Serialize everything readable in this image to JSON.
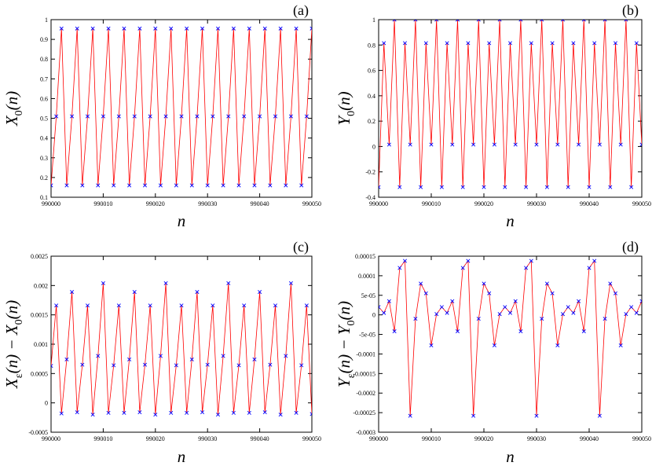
{
  "chart_data": [
    {
      "type": "line",
      "panel_label": "(a)",
      "xlabel": "n",
      "ylabel": {
        "base": "X",
        "sub": "0",
        "arg": "(n)"
      },
      "xlim": [
        990000,
        990050
      ],
      "ylim": [
        0.1,
        1.0
      ],
      "x_ticks": [
        990000,
        990010,
        990020,
        990030,
        990040,
        990050
      ],
      "y_ticks": [
        0.1,
        0.2,
        0.3,
        0.4,
        0.5,
        0.6,
        0.7,
        0.8,
        0.9,
        1.0
      ],
      "y_tick_labels": [
        "0.1",
        "0.2",
        "0.3",
        "0.4",
        "0.5",
        "0.6",
        "0.7",
        "0.8",
        "0.9",
        "1"
      ],
      "line_color": "#ff0000",
      "marker_color": "#0000ff",
      "marker": "x",
      "x_start": 990000,
      "values": [
        0.16,
        0.51,
        0.955,
        0.16,
        0.51,
        0.955,
        0.16,
        0.51,
        0.955,
        0.16,
        0.51,
        0.955,
        0.16,
        0.51,
        0.955,
        0.16,
        0.51,
        0.955,
        0.16,
        0.51,
        0.955,
        0.16,
        0.51,
        0.955,
        0.16,
        0.51,
        0.955,
        0.16,
        0.51,
        0.955,
        0.16,
        0.51,
        0.955,
        0.16,
        0.51,
        0.955,
        0.16,
        0.51,
        0.955,
        0.16,
        0.51,
        0.955,
        0.16,
        0.51,
        0.955,
        0.16,
        0.51,
        0.955,
        0.16,
        0.51,
        0.955
      ]
    },
    {
      "type": "line",
      "panel_label": "(b)",
      "xlabel": "n",
      "ylabel": {
        "base": "Y",
        "sub": "0",
        "arg": "(n)"
      },
      "xlim": [
        990000,
        990050
      ],
      "ylim": [
        -0.4,
        1.0
      ],
      "x_ticks": [
        990000,
        990010,
        990020,
        990030,
        990040,
        990050
      ],
      "y_ticks": [
        -0.4,
        -0.2,
        0,
        0.2,
        0.4,
        0.6,
        0.8,
        1.0
      ],
      "y_tick_labels": [
        "-0.4",
        "-0.2",
        "0",
        "0.2",
        "0.4",
        "0.6",
        "0.8",
        "1"
      ],
      "line_color": "#ff0000",
      "marker_color": "#0000ff",
      "marker": "x",
      "x_start": 990000,
      "values": [
        -0.32,
        0.815,
        0.015,
        1.0,
        -0.32,
        0.815,
        0.015,
        1.0,
        -0.32,
        0.815,
        0.015,
        1.0,
        -0.32,
        0.815,
        0.015,
        1.0,
        -0.32,
        0.815,
        0.015,
        1.0,
        -0.32,
        0.815,
        0.015,
        1.0,
        -0.32,
        0.815,
        0.015,
        1.0,
        -0.32,
        0.815,
        0.015,
        1.0,
        -0.32,
        0.815,
        0.015,
        1.0,
        -0.32,
        0.815,
        0.015,
        1.0,
        -0.32,
        0.815,
        0.015,
        1.0,
        -0.32,
        0.815,
        0.015,
        1.0,
        -0.32,
        0.815,
        0.015
      ]
    },
    {
      "type": "line",
      "panel_label": "(c)",
      "xlabel": "n",
      "ylabel": {
        "base": "X",
        "sub": "ε",
        "arg": "(n) − X",
        "sub2": "0",
        "arg2": "(n)"
      },
      "xlim": [
        990000,
        990050
      ],
      "ylim": [
        -0.0005,
        0.0025
      ],
      "x_ticks": [
        990000,
        990010,
        990020,
        990030,
        990040,
        990050
      ],
      "y_ticks": [
        -0.0005,
        0,
        0.0005,
        0.001,
        0.0015,
        0.002,
        0.0025
      ],
      "y_tick_labels": [
        "-0.0005",
        "0",
        "0.0005",
        "0.001",
        "0.0015",
        "0.002",
        "0.0025"
      ],
      "line_color": "#ff0000",
      "marker_color": "#0000ff",
      "marker": "x",
      "x_start": 990000,
      "values": [
        0.00063,
        0.00166,
        -0.00018,
        0.00074,
        0.00189,
        -0.00016,
        0.00065,
        0.00166,
        -0.0002,
        0.0008,
        0.00204,
        -0.00017,
        0.00064,
        0.00166,
        -0.00017,
        0.00074,
        0.00189,
        -0.00016,
        0.00065,
        0.00166,
        -0.0002,
        0.0008,
        0.00204,
        -0.00017,
        0.00064,
        0.00166,
        -0.00017,
        0.00074,
        0.00189,
        -0.00016,
        0.00065,
        0.00166,
        -0.0002,
        0.0008,
        0.00204,
        -0.00017,
        0.00064,
        0.00166,
        -0.00017,
        0.00074,
        0.00189,
        -0.00016,
        0.00065,
        0.00166,
        -0.0002,
        0.0008,
        0.00204,
        -0.00017,
        0.00064,
        0.00166,
        -0.00019
      ]
    },
    {
      "type": "line",
      "panel_label": "(d)",
      "xlabel": "n",
      "ylabel": {
        "base": "Y",
        "sub": "ε",
        "arg": "(n) − Y",
        "sub2": "0",
        "arg2": "(n)"
      },
      "xlim": [
        990000,
        990050
      ],
      "ylim": [
        -0.0003,
        0.00015
      ],
      "x_ticks": [
        990000,
        990010,
        990020,
        990030,
        990040,
        990050
      ],
      "y_ticks": [
        -0.0003,
        -0.00025,
        -0.0002,
        -0.00015,
        -0.0001,
        -5e-05,
        0,
        5e-05,
        0.0001,
        0.00015
      ],
      "y_tick_labels": [
        "-0.0003",
        "-0.00025",
        "-0.0002",
        "-0.00015",
        "-0.0001",
        "-5e-05",
        "0",
        "5e-05",
        "0.0001",
        "0.00015"
      ],
      "line_color": "#ff0000",
      "marker_color": "#0000ff",
      "marker": "x",
      "x_start": 990000,
      "values": [
        2e-05,
        5e-06,
        3.5e-05,
        -4.2e-05,
        0.00012,
        0.000138,
        -0.000258,
        -1e-05,
        8e-05,
        5.5e-05,
        -7.8e-05,
        2e-06,
        2e-05,
        5e-06,
        3.5e-05,
        -4.2e-05,
        0.00012,
        0.000138,
        -0.000258,
        -1e-05,
        8e-05,
        5.5e-05,
        -7.8e-05,
        2e-06,
        2e-05,
        5e-06,
        3.5e-05,
        -4.2e-05,
        0.00012,
        0.000138,
        -0.000258,
        -1e-05,
        8e-05,
        5.5e-05,
        -7.8e-05,
        2e-06,
        2e-05,
        5e-06,
        3.5e-05,
        -4.2e-05,
        0.00012,
        0.000138,
        -0.000258,
        -1e-05,
        8e-05,
        5.5e-05,
        -7.8e-05,
        2e-06,
        2e-05,
        5e-06,
        3.5e-05
      ]
    }
  ]
}
